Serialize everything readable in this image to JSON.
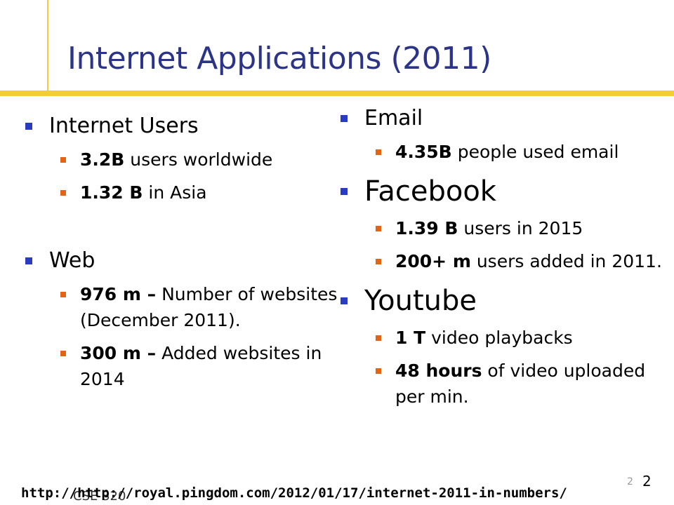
{
  "title": "Internet Applications (2011)",
  "colors": {
    "title": "#2b3488",
    "rule": "#f2cd3a",
    "bullet_l1": "#2b3bbf",
    "bullet_l2": "#e36414"
  },
  "left": [
    {
      "heading": "Internet Users",
      "items": [
        {
          "bold": "3.2B",
          "text": " users worldwide"
        },
        {
          "bold": "1.32 B",
          "text": " in Asia"
        }
      ]
    },
    {
      "heading": "Web",
      "items": [
        {
          "bold": "976 m –",
          "text": " Number of websites (December 2011)."
        },
        {
          "bold": "300 m –",
          "text": " Added websites in 2014"
        }
      ]
    }
  ],
  "right": [
    {
      "heading": "Email",
      "items": [
        {
          "bold": "4.35B",
          "text": " people used email"
        }
      ]
    },
    {
      "heading": "Facebook",
      "items": [
        {
          "bold": "1.39 B",
          "text": " users in 2015"
        },
        {
          "bold": "200+ m",
          "text": " users added in 2011."
        }
      ]
    },
    {
      "heading": "Youtube",
      "items": [
        {
          "bold": "1 T",
          "text": " video playbacks"
        },
        {
          "bold": "48 hours",
          "text": " of video uploaded per min."
        }
      ]
    }
  ],
  "footer": {
    "url": "http://http://royal.pingdom.com/2012/01/17/internet-2011-in-numbers/",
    "course": "CSE 320",
    "page_small": "2",
    "page": "2"
  }
}
